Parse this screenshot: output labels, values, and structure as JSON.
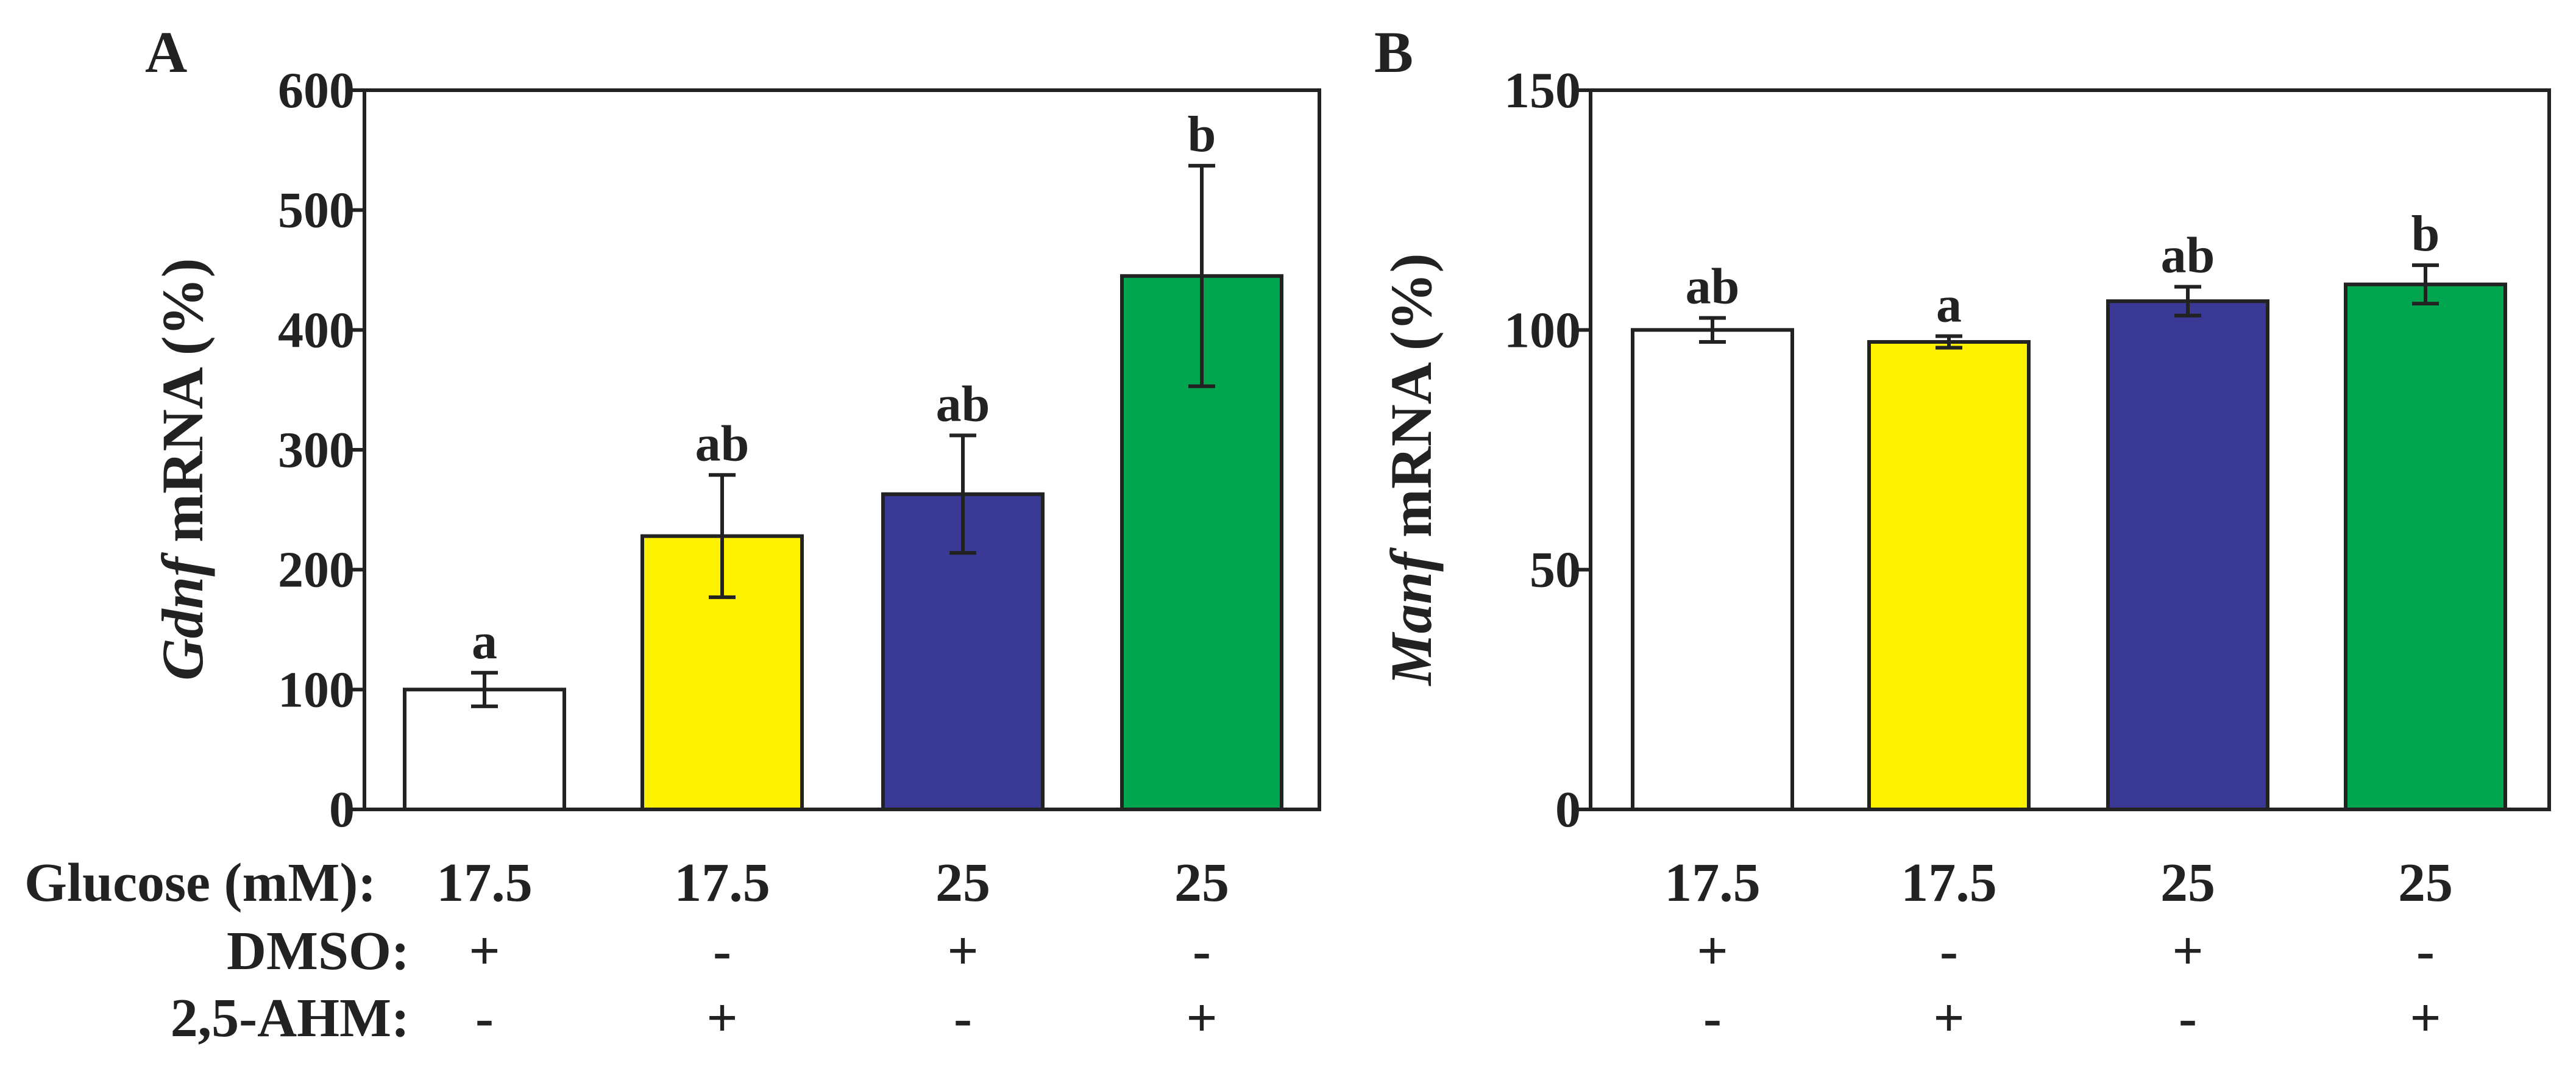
{
  "colors": {
    "axis": "#222222",
    "white": "#ffffff",
    "yellow": "#fff200",
    "blue": "#3a3a96",
    "green": "#00a54f"
  },
  "row_labels": {
    "glucose": "Glucose (mM):",
    "dmso": "DMSO:",
    "ahm": "2,5-AHM:"
  },
  "conditions": [
    {
      "glucose": "17.5",
      "dmso": "+",
      "ahm": "-"
    },
    {
      "glucose": "17.5",
      "dmso": "-",
      "ahm": "+"
    },
    {
      "glucose": "25",
      "dmso": "+",
      "ahm": "-"
    },
    {
      "glucose": "25",
      "dmso": "-",
      "ahm": "+"
    }
  ],
  "chart_data": [
    {
      "panel": "A",
      "type": "bar",
      "ylabel_italic": "Gdnf",
      "ylabel_rest": " mRNA (%)",
      "ylim": [
        0,
        600
      ],
      "yticks": [
        0,
        100,
        200,
        300,
        400,
        500,
        600
      ],
      "values": [
        100,
        228,
        263,
        445
      ],
      "errors": [
        14,
        51,
        49,
        92
      ],
      "significance": [
        "a",
        "ab",
        "ab",
        "b"
      ],
      "bar_colors": [
        "#ffffff",
        "#fff200",
        "#3a3a96",
        "#00a54f"
      ]
    },
    {
      "panel": "B",
      "type": "bar",
      "ylabel_italic": "Manf",
      "ylabel_rest": " mRNA (%)",
      "ylim": [
        0,
        150
      ],
      "yticks": [
        0,
        50,
        100,
        150
      ],
      "values": [
        100,
        97.5,
        106,
        109.5
      ],
      "errors": [
        2.5,
        1.2,
        3,
        4
      ],
      "significance": [
        "ab",
        "a",
        "ab",
        "b"
      ],
      "bar_colors": [
        "#ffffff",
        "#fff200",
        "#3a3a96",
        "#00a54f"
      ]
    }
  ]
}
